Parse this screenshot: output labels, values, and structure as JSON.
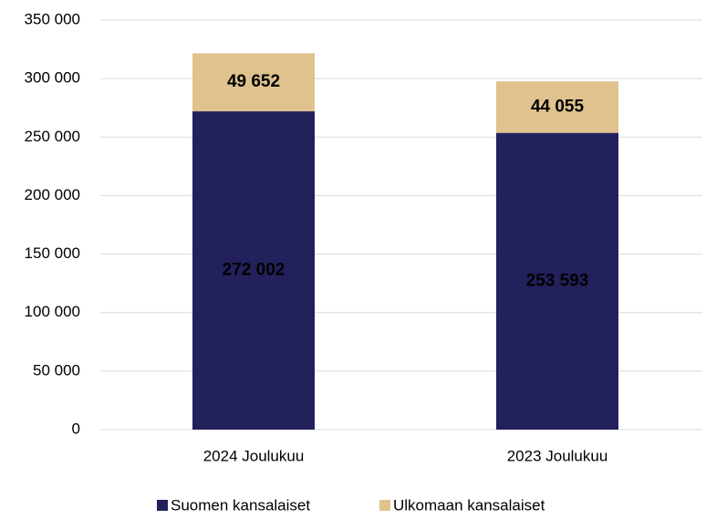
{
  "chart_data": {
    "type": "bar",
    "stacked": true,
    "categories": [
      "2024 Joulukuu",
      "2023 Joulukuu"
    ],
    "series": [
      {
        "name": "Suomen kansalaiset",
        "color": "#22215b",
        "values": [
          272002,
          253593
        ],
        "value_labels": [
          "272 002",
          "253 593"
        ]
      },
      {
        "name": "Ulkomaan kansalaiset",
        "color": "#dfc28e",
        "values": [
          49652,
          44055
        ],
        "value_labels": [
          "49 652",
          "44 055"
        ]
      }
    ],
    "ylim": [
      0,
      350000
    ],
    "yticks": [
      0,
      {
        "value": 50000,
        "label": "50 000"
      },
      {
        "value": 100000,
        "label": "100 000"
      },
      {
        "value": 150000,
        "label": "150 000"
      },
      {
        "value": 200000,
        "label": "200 000"
      },
      {
        "value": 250000,
        "label": "250 000"
      },
      {
        "value": 300000,
        "label": "300 000"
      },
      {
        "value": 350000,
        "label": "350 000"
      }
    ],
    "grid": true,
    "legend": "bottom"
  }
}
